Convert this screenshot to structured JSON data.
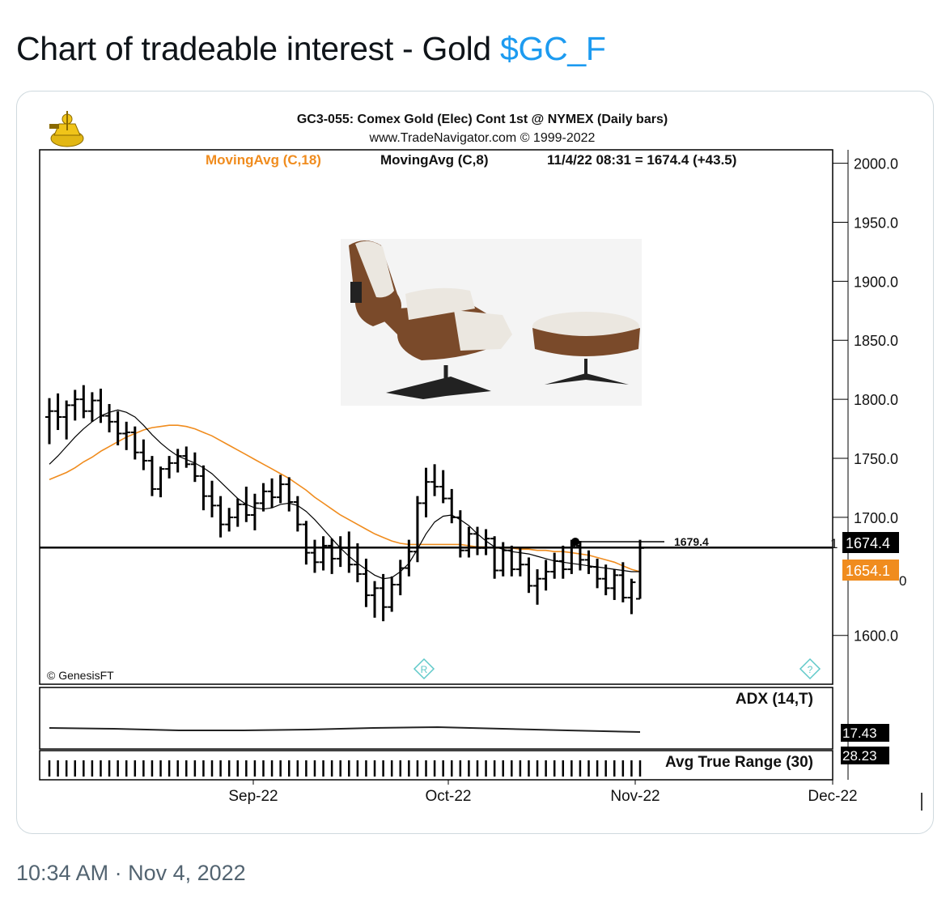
{
  "tweet": {
    "text": "Chart of tradeable interest - Gold ",
    "cashtag": "$GC_F",
    "time": "10:34 AM",
    "separator": " · ",
    "date": "Nov 4, 2022"
  },
  "chart": {
    "title": "GC3-055:  Comex Gold (Elec) Cont 1st @ NYMEX  (Daily bars)",
    "url": "www.TradeNavigator.com © 1999-2022",
    "ma18_label": "MovingAvg (C,18)",
    "ma8_label": "MovingAvg (C,8)",
    "reading": "11/4/22 08:31 = 1674.4 (+43.5)",
    "credit": "© GenesisFT",
    "level_label": "1679.4",
    "price_tag": "1674.4",
    "ma_tag": "1654.1",
    "price_tag_prefix": "1",
    "ma_tag_suffix": "0",
    "adx_label": "ADX (14,T)",
    "adx_value": "17.43",
    "atr_label": "Avg True Range (30)",
    "atr_value": "28.23",
    "r_marker": "R",
    "q_marker": "?",
    "colors": {
      "ma18": "#f08c1e",
      "ma8": "#000000",
      "bars": "#000000",
      "price_tag_bg": "#000000",
      "ma_tag_bg": "#f08c1e",
      "marker": "#5fc9c9"
    },
    "icons": [
      "sextant-logo-icon",
      "lounge-chair-image"
    ]
  },
  "chart_data": {
    "type": "ohlc",
    "title": "GC3-055:  Comex Gold (Elec) Cont 1st @ NYMEX  (Daily bars)",
    "ylim": [
      1560,
      2010
    ],
    "y_ticks": [
      2000.0,
      1950.0,
      1900.0,
      1850.0,
      1800.0,
      1750.0,
      1700.0,
      1600.0
    ],
    "y_tick_labels": [
      "2000.0",
      "1950.0",
      "1900.0",
      "1850.0",
      "1800.0",
      "1750.0",
      "1700.0",
      "1600.0"
    ],
    "x_ticks": [
      "Sep-22",
      "Oct-22",
      "Nov-22",
      "Dec-22"
    ],
    "horizontal_level": 1679.4,
    "last_price": 1674.4,
    "ma18_last": 1654.1,
    "ohlc": [
      [
        1785,
        1801,
        1762,
        1790
      ],
      [
        1790,
        1805,
        1774,
        1785
      ],
      [
        1785,
        1799,
        1766,
        1795
      ],
      [
        1795,
        1808,
        1782,
        1800
      ],
      [
        1800,
        1812,
        1784,
        1790
      ],
      [
        1790,
        1806,
        1781,
        1799
      ],
      [
        1799,
        1809,
        1780,
        1786
      ],
      [
        1786,
        1796,
        1772,
        1781
      ],
      [
        1781,
        1790,
        1761,
        1771
      ],
      [
        1771,
        1781,
        1757,
        1772
      ],
      [
        1772,
        1777,
        1749,
        1755
      ],
      [
        1755,
        1766,
        1740,
        1748
      ],
      [
        1748,
        1752,
        1718,
        1724
      ],
      [
        1724,
        1743,
        1717,
        1741
      ],
      [
        1741,
        1752,
        1733,
        1746
      ],
      [
        1746,
        1758,
        1738,
        1752
      ],
      [
        1752,
        1760,
        1742,
        1745
      ],
      [
        1745,
        1755,
        1730,
        1735
      ],
      [
        1735,
        1744,
        1706,
        1718
      ],
      [
        1718,
        1731,
        1700,
        1710
      ],
      [
        1710,
        1718,
        1683,
        1694
      ],
      [
        1694,
        1708,
        1688,
        1700
      ],
      [
        1700,
        1716,
        1692,
        1711
      ],
      [
        1711,
        1726,
        1696,
        1702
      ],
      [
        1702,
        1720,
        1689,
        1712
      ],
      [
        1712,
        1729,
        1705,
        1722
      ],
      [
        1722,
        1733,
        1708,
        1717
      ],
      [
        1717,
        1736,
        1712,
        1728
      ],
      [
        1728,
        1734,
        1705,
        1713
      ],
      [
        1713,
        1718,
        1688,
        1694
      ],
      [
        1694,
        1697,
        1660,
        1670
      ],
      [
        1670,
        1681,
        1653,
        1662
      ],
      [
        1662,
        1684,
        1655,
        1676
      ],
      [
        1676,
        1682,
        1652,
        1665
      ],
      [
        1665,
        1684,
        1658,
        1674
      ],
      [
        1674,
        1688,
        1653,
        1660
      ],
      [
        1660,
        1678,
        1645,
        1652
      ],
      [
        1652,
        1665,
        1624,
        1634
      ],
      [
        1634,
        1646,
        1615,
        1640
      ],
      [
        1640,
        1652,
        1612,
        1624
      ],
      [
        1624,
        1650,
        1620,
        1643
      ],
      [
        1643,
        1664,
        1634,
        1657
      ],
      [
        1657,
        1681,
        1650,
        1671
      ],
      [
        1671,
        1718,
        1662,
        1712
      ],
      [
        1712,
        1742,
        1700,
        1730
      ],
      [
        1730,
        1745,
        1718,
        1726
      ],
      [
        1726,
        1740,
        1712,
        1716
      ],
      [
        1716,
        1724,
        1695,
        1700
      ],
      [
        1700,
        1706,
        1666,
        1672
      ],
      [
        1672,
        1692,
        1666,
        1686
      ],
      [
        1686,
        1692,
        1668,
        1674
      ],
      [
        1674,
        1690,
        1668,
        1682
      ],
      [
        1682,
        1684,
        1648,
        1655
      ],
      [
        1655,
        1679,
        1650,
        1672
      ],
      [
        1672,
        1676,
        1650,
        1656
      ],
      [
        1656,
        1674,
        1650,
        1660
      ],
      [
        1660,
        1666,
        1636,
        1642
      ],
      [
        1642,
        1656,
        1626,
        1648
      ],
      [
        1648,
        1664,
        1638,
        1654
      ],
      [
        1654,
        1670,
        1648,
        1663
      ],
      [
        1663,
        1676,
        1648,
        1656
      ],
      [
        1656,
        1681,
        1652,
        1676
      ],
      [
        1676,
        1680,
        1655,
        1664
      ],
      [
        1664,
        1672,
        1652,
        1658
      ],
      [
        1658,
        1665,
        1640,
        1648
      ],
      [
        1648,
        1660,
        1634,
        1640
      ],
      [
        1640,
        1656,
        1630,
        1651
      ],
      [
        1651,
        1662,
        1628,
        1632
      ],
      [
        1632,
        1648,
        1618,
        1645
      ],
      [
        1631,
        1681,
        1631,
        1674
      ]
    ],
    "series": [
      {
        "name": "MovingAvg (C,18)",
        "values": [
          1732,
          1735,
          1738,
          1742,
          1747,
          1751,
          1756,
          1760,
          1764,
          1768,
          1771,
          1774,
          1776,
          1777,
          1778,
          1778,
          1777,
          1775,
          1772,
          1769,
          1765,
          1761,
          1757,
          1753,
          1749,
          1745,
          1741,
          1737,
          1733,
          1728,
          1723,
          1717,
          1712,
          1707,
          1702,
          1698,
          1694,
          1690,
          1686,
          1683,
          1680,
          1678,
          1677,
          1677,
          1677,
          1677,
          1677,
          1677,
          1677,
          1676,
          1675,
          1675,
          1674,
          1674,
          1674,
          1673,
          1673,
          1672,
          1672,
          1671,
          1671,
          1670,
          1669,
          1668,
          1666,
          1664,
          1662,
          1659,
          1656,
          1654
        ]
      },
      {
        "name": "MovingAvg (C,8)",
        "values": [
          1745,
          1752,
          1760,
          1768,
          1775,
          1781,
          1786,
          1789,
          1791,
          1789,
          1785,
          1778,
          1770,
          1763,
          1757,
          1752,
          1749,
          1746,
          1742,
          1737,
          1730,
          1723,
          1716,
          1711,
          1708,
          1707,
          1708,
          1711,
          1712,
          1710,
          1705,
          1698,
          1690,
          1682,
          1674,
          1667,
          1661,
          1656,
          1651,
          1648,
          1649,
          1654,
          1661,
          1673,
          1686,
          1696,
          1701,
          1702,
          1698,
          1693,
          1686,
          1680,
          1675,
          1673,
          1671,
          1670,
          1669,
          1667,
          1665,
          1663,
          1662,
          1661,
          1660,
          1659,
          1658,
          1657,
          1656,
          1655,
          1654,
          1654
        ]
      }
    ]
  }
}
